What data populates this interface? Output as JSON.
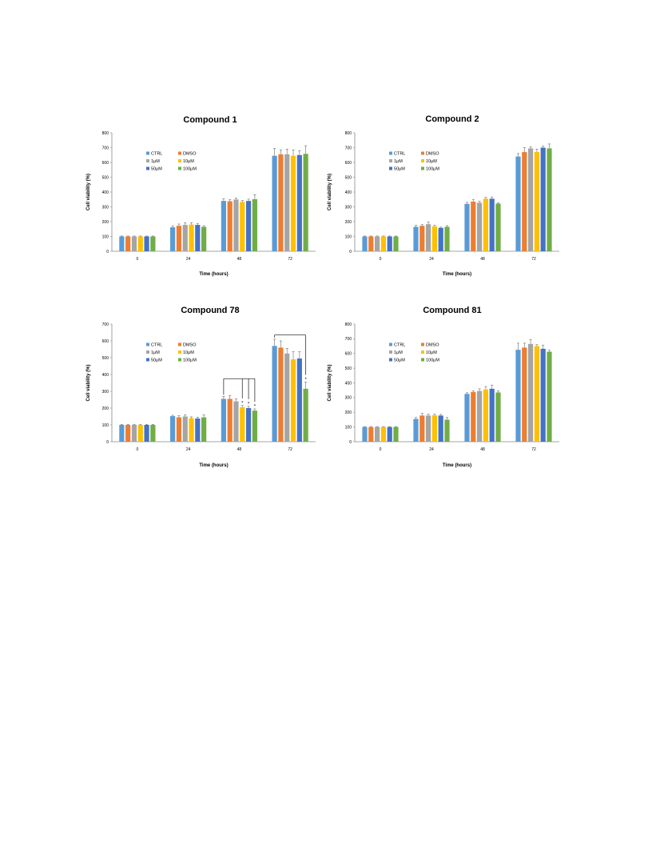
{
  "chart_data": [
    {
      "type": "bar",
      "title": "Compound 1",
      "xlabel": "Time (hours)",
      "ylabel": "Cell viability (%)",
      "categories": [
        "0",
        "24",
        "48",
        "72"
      ],
      "ylim": [
        0,
        800
      ],
      "yticks": [
        0,
        100,
        200,
        300,
        400,
        500,
        600,
        700,
        800
      ],
      "legend_position": "top-left",
      "grid": false,
      "series": [
        {
          "name": "CTRL",
          "color": "#5b9bd5",
          "values": [
            100,
            162,
            340,
            645
          ],
          "errors": [
            3,
            10,
            15,
            50
          ]
        },
        {
          "name": "DMSO",
          "color": "#ed7d31",
          "values": [
            100,
            172,
            338,
            655
          ],
          "errors": [
            3,
            12,
            10,
            30
          ]
        },
        {
          "name": "1μM",
          "color": "#a5a5a5",
          "values": [
            100,
            178,
            350,
            655
          ],
          "errors": [
            3,
            15,
            10,
            35
          ]
        },
        {
          "name": "10μM",
          "color": "#ffc000",
          "values": [
            100,
            180,
            333,
            645
          ],
          "errors": [
            3,
            12,
            10,
            40
          ]
        },
        {
          "name": "50μM",
          "color": "#4472c4",
          "values": [
            100,
            178,
            340,
            650
          ],
          "errors": [
            3,
            10,
            12,
            30
          ]
        },
        {
          "name": "100μM",
          "color": "#70ad47",
          "values": [
            100,
            165,
            352,
            658
          ],
          "errors": [
            3,
            8,
            30,
            55
          ]
        }
      ],
      "annotations": []
    },
    {
      "type": "bar",
      "title": "Compound 2",
      "xlabel": "Time (hours)",
      "ylabel": "Cell viability (%)",
      "categories": [
        "0",
        "24",
        "48",
        "72"
      ],
      "ylim": [
        0,
        800
      ],
      "yticks": [
        0,
        100,
        200,
        300,
        400,
        500,
        600,
        700,
        800
      ],
      "legend_position": "top-left",
      "grid": false,
      "series": [
        {
          "name": "CTRL",
          "color": "#5b9bd5",
          "values": [
            100,
            165,
            320,
            640
          ],
          "errors": [
            3,
            10,
            10,
            20
          ]
        },
        {
          "name": "DMSO",
          "color": "#ed7d31",
          "values": [
            100,
            172,
            335,
            670
          ],
          "errors": [
            3,
            8,
            15,
            30
          ]
        },
        {
          "name": "1μM",
          "color": "#a5a5a5",
          "values": [
            100,
            183,
            328,
            695
          ],
          "errors": [
            3,
            15,
            10,
            10
          ]
        },
        {
          "name": "10μM",
          "color": "#ffc000",
          "values": [
            100,
            168,
            355,
            670
          ],
          "errors": [
            3,
            8,
            10,
            20
          ]
        },
        {
          "name": "50μM",
          "color": "#4472c4",
          "values": [
            100,
            158,
            355,
            700
          ],
          "errors": [
            3,
            5,
            12,
            10
          ]
        },
        {
          "name": "100μM",
          "color": "#70ad47",
          "values": [
            100,
            165,
            322,
            695
          ],
          "errors": [
            3,
            8,
            5,
            30
          ]
        }
      ],
      "annotations": []
    },
    {
      "type": "bar",
      "title": "Compound 78",
      "xlabel": "Time (hours)",
      "ylabel": "Cell viability (%)",
      "categories": [
        "0",
        "24",
        "48",
        "72"
      ],
      "ylim": [
        0,
        700
      ],
      "yticks": [
        0,
        100,
        200,
        300,
        400,
        500,
        600,
        700
      ],
      "legend_position": "top-left",
      "grid": false,
      "series": [
        {
          "name": "CTRL",
          "color": "#5b9bd5",
          "values": [
            100,
            152,
            255,
            570
          ],
          "errors": [
            3,
            5,
            15,
            40
          ]
        },
        {
          "name": "DMSO",
          "color": "#ed7d31",
          "values": [
            100,
            145,
            255,
            560
          ],
          "errors": [
            3,
            10,
            20,
            40
          ]
        },
        {
          "name": "1μM",
          "color": "#a5a5a5",
          "values": [
            100,
            150,
            240,
            525
          ],
          "errors": [
            3,
            10,
            15,
            30
          ]
        },
        {
          "name": "10μM",
          "color": "#ffc000",
          "values": [
            100,
            140,
            205,
            490
          ],
          "errors": [
            3,
            8,
            10,
            45
          ]
        },
        {
          "name": "50μM",
          "color": "#4472c4",
          "values": [
            100,
            138,
            200,
            495
          ],
          "errors": [
            3,
            8,
            10,
            40
          ]
        },
        {
          "name": "100μM",
          "color": "#70ad47",
          "values": [
            100,
            145,
            185,
            315
          ],
          "errors": [
            3,
            15,
            10,
            40
          ]
        }
      ],
      "annotations": [
        {
          "type": "asterisk",
          "text": "*",
          "category": "48",
          "series": "10μM"
        },
        {
          "type": "asterisk",
          "text": "*",
          "category": "48",
          "series": "50μM"
        },
        {
          "type": "asterisk",
          "text": "*",
          "category": "48",
          "series": "100μM"
        },
        {
          "type": "asterisk",
          "text": "*",
          "category": "72",
          "series": "100μM"
        },
        {
          "type": "bracket",
          "category": "48",
          "from": "CTRL",
          "to": [
            "10μM",
            "50μM",
            "100μM"
          ],
          "y": 375
        },
        {
          "type": "bracket",
          "category": "72",
          "from": "CTRL",
          "to": [
            "100μM"
          ],
          "y": 635
        }
      ]
    },
    {
      "type": "bar",
      "title": "Compound 81",
      "xlabel": "Time (hours)",
      "ylabel": "Cell viability (%)",
      "categories": [
        "0",
        "24",
        "48",
        "72"
      ],
      "ylim": [
        0,
        800
      ],
      "yticks": [
        0,
        100,
        200,
        300,
        400,
        500,
        600,
        700,
        800
      ],
      "legend_position": "top-left",
      "grid": false,
      "series": [
        {
          "name": "CTRL",
          "color": "#5b9bd5",
          "values": [
            100,
            155,
            325,
            625
          ],
          "errors": [
            3,
            10,
            8,
            45
          ]
        },
        {
          "name": "DMSO",
          "color": "#ed7d31",
          "values": [
            100,
            178,
            338,
            640
          ],
          "errors": [
            3,
            15,
            8,
            30
          ]
        },
        {
          "name": "1μM",
          "color": "#a5a5a5",
          "values": [
            100,
            178,
            345,
            665
          ],
          "errors": [
            3,
            10,
            15,
            30
          ]
        },
        {
          "name": "10μM",
          "color": "#ffc000",
          "values": [
            100,
            180,
            355,
            650
          ],
          "errors": [
            3,
            8,
            20,
            10
          ]
        },
        {
          "name": "50μM",
          "color": "#4472c4",
          "values": [
            100,
            178,
            360,
            632
          ],
          "errors": [
            3,
            8,
            25,
            25
          ]
        },
        {
          "name": "100μM",
          "color": "#70ad47",
          "values": [
            100,
            150,
            335,
            612
          ],
          "errors": [
            3,
            15,
            12,
            10
          ]
        }
      ],
      "annotations": []
    }
  ]
}
